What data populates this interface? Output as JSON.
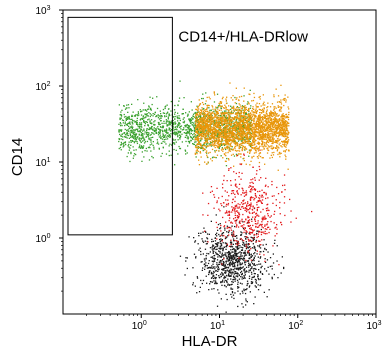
{
  "chart_data": {
    "type": "scatter",
    "title": "",
    "xlabel": "HLA-DR",
    "ylabel": "CD14",
    "x_scale": "log",
    "y_scale": "log",
    "xlim": [
      0.1,
      1000
    ],
    "ylim": [
      0.1,
      1000
    ],
    "x_ticks": [
      {
        "value": 1,
        "base": "10",
        "exp": "0"
      },
      {
        "value": 10,
        "base": "10",
        "exp": "1"
      },
      {
        "value": 100,
        "base": "10",
        "exp": "2"
      },
      {
        "value": 1000,
        "base": "10",
        "exp": "3"
      }
    ],
    "y_ticks": [
      {
        "value": 1,
        "base": "10",
        "exp": "0"
      },
      {
        "value": 10,
        "base": "10",
        "exp": "1"
      },
      {
        "value": 100,
        "base": "10",
        "exp": "2"
      },
      {
        "value": 1000,
        "base": "10",
        "exp": "3"
      }
    ],
    "grid": false,
    "legend": "none",
    "gate": {
      "label": "CD14+/HLA-DRlow",
      "x_range": [
        0.1,
        2.5
      ],
      "y_range": [
        1.1,
        800
      ]
    },
    "populations": [
      {
        "color": "#e8960a",
        "description_center": [
          12,
          35
        ],
        "log_x_center": 1.1,
        "log_x_spread": 1.0,
        "log_y_center": 1.45,
        "log_y_spread": 0.32
      },
      {
        "color": "#3aa12e",
        "description_center": [
          3,
          30
        ],
        "log_x_center": 0.55,
        "log_x_spread": 0.85,
        "log_y_center": 1.45,
        "log_y_spread": 0.32
      },
      {
        "color": "#e31a1c",
        "description_center": [
          25,
          3
        ],
        "log_x_center": 1.35,
        "log_x_spread": 0.45,
        "log_y_center": 0.35,
        "log_y_spread": 0.5
      },
      {
        "color": "#1a1a1a",
        "description_center": [
          15,
          0.5
        ],
        "log_x_center": 1.15,
        "log_x_spread": 0.45,
        "log_y_center": -0.3,
        "log_y_spread": 0.45
      }
    ]
  }
}
